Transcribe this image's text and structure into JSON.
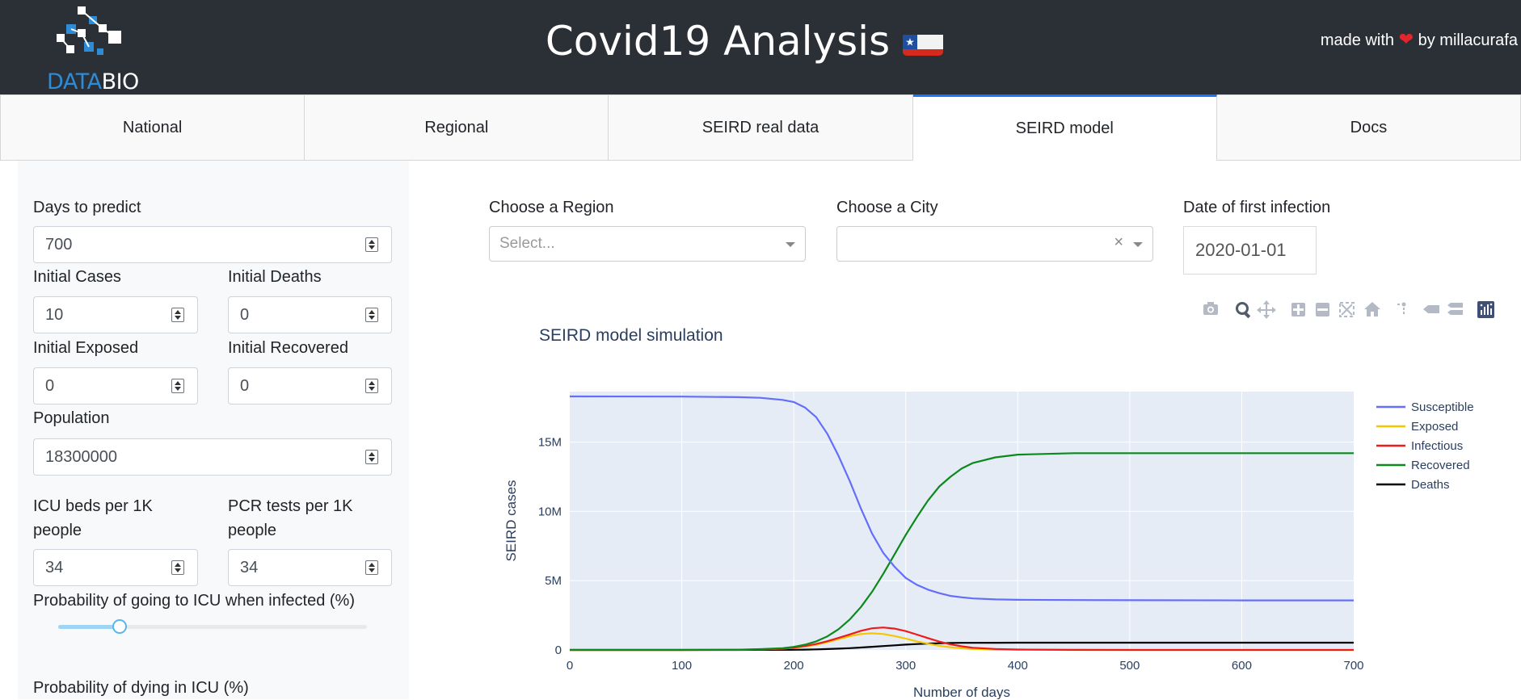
{
  "header": {
    "logo_prefix": "DATA",
    "logo_suffix": "BIO",
    "title": "Covid19 Analysis",
    "made_with": "made with",
    "by": "by millacurafa"
  },
  "tabs": [
    {
      "label": "National"
    },
    {
      "label": "Regional"
    },
    {
      "label": "SEIRD real data"
    },
    {
      "label": "SEIRD model"
    },
    {
      "label": "Docs"
    }
  ],
  "form": {
    "days_label": "Days to predict",
    "days_value": "700",
    "init_cases_label": "Initial Cases",
    "init_cases_value": "10",
    "init_deaths_label": "Initial Deaths",
    "init_deaths_value": "0",
    "init_exposed_label": "Initial Exposed",
    "init_exposed_value": "0",
    "init_recovered_label": "Initial Recovered",
    "init_recovered_value": "0",
    "population_label": "Population",
    "population_value": "18300000",
    "icu_beds_label_1": "ICU beds per 1K",
    "icu_beds_label_2": "people",
    "icu_beds_value": "34",
    "pcr_label_1": "PCR tests per 1K",
    "pcr_label_2": "people",
    "pcr_value": "34",
    "icu_prob_label": "Probability of going to ICU when infected (%)",
    "icu_prob_fraction": 0.2,
    "dying_label": "Probability of dying in ICU (%)"
  },
  "filters": {
    "region_label": "Choose a Region",
    "region_placeholder": "Select...",
    "city_label": "Choose a City",
    "city_clear": "×",
    "date_label": "Date of first infection",
    "date_value": "2020-01-01"
  },
  "colors": {
    "accent": "#1975fa",
    "header_bg": "#2b2f36",
    "plot_bg": "#e5ecf6"
  },
  "chart_data": {
    "type": "line",
    "title": "SEIRD model simulation",
    "xlabel": "Number of days",
    "ylabel": "SEIRD cases",
    "xlim": [
      0,
      700
    ],
    "ylim": [
      0,
      18300000
    ],
    "x_ticks": [
      0,
      100,
      200,
      300,
      400,
      500,
      600,
      700
    ],
    "y_ticks": [
      {
        "value": 0,
        "label": "0"
      },
      {
        "value": 5000000,
        "label": "5M"
      },
      {
        "value": 10000000,
        "label": "10M"
      },
      {
        "value": 15000000,
        "label": "15M"
      }
    ],
    "x": [
      0,
      100,
      150,
      170,
      190,
      200,
      210,
      220,
      230,
      240,
      250,
      260,
      270,
      280,
      290,
      300,
      310,
      320,
      330,
      340,
      350,
      360,
      380,
      400,
      450,
      500,
      600,
      700
    ],
    "series": [
      {
        "name": "Susceptible",
        "color": "#636efa",
        "values": [
          18300000,
          18290000,
          18250000,
          18200000,
          18050000,
          17900000,
          17500000,
          16800000,
          15600000,
          14000000,
          12200000,
          10200000,
          8400000,
          7000000,
          6000000,
          5200000,
          4700000,
          4350000,
          4100000,
          3900000,
          3800000,
          3720000,
          3650000,
          3620000,
          3600000,
          3590000,
          3580000,
          3580000
        ]
      },
      {
        "name": "Exposed",
        "color": "#f7c600",
        "values": [
          0,
          0,
          10000,
          40000,
          90000,
          150000,
          250000,
          380000,
          560000,
          780000,
          990000,
          1150000,
          1200000,
          1150000,
          1000000,
          820000,
          620000,
          450000,
          300000,
          190000,
          120000,
          70000,
          30000,
          10000,
          0,
          0,
          0,
          0
        ]
      },
      {
        "name": "Infectious",
        "color": "#ef1a1a",
        "values": [
          0,
          0,
          10000,
          40000,
          100000,
          170000,
          280000,
          430000,
          630000,
          870000,
          1120000,
          1380000,
          1560000,
          1620000,
          1540000,
          1360000,
          1110000,
          850000,
          600000,
          400000,
          260000,
          160000,
          70000,
          30000,
          5000,
          0,
          0,
          0
        ]
      },
      {
        "name": "Recovered",
        "color": "#0a8a1a",
        "values": [
          0,
          0,
          20000,
          60000,
          130000,
          220000,
          380000,
          620000,
          980000,
          1500000,
          2200000,
          3100000,
          4200000,
          5500000,
          6900000,
          8300000,
          9600000,
          10800000,
          11800000,
          12500000,
          13100000,
          13500000,
          13900000,
          14100000,
          14200000,
          14200000,
          14200000,
          14200000
        ]
      },
      {
        "name": "Deaths",
        "color": "#000000",
        "values": [
          0,
          0,
          1000,
          3000,
          8000,
          14000,
          24000,
          40000,
          62000,
          92000,
          130000,
          175000,
          225000,
          280000,
          335000,
          385000,
          425000,
          460000,
          485000,
          500000,
          510000,
          515000,
          520000,
          522000,
          523000,
          523000,
          523000,
          523000
        ]
      }
    ]
  }
}
